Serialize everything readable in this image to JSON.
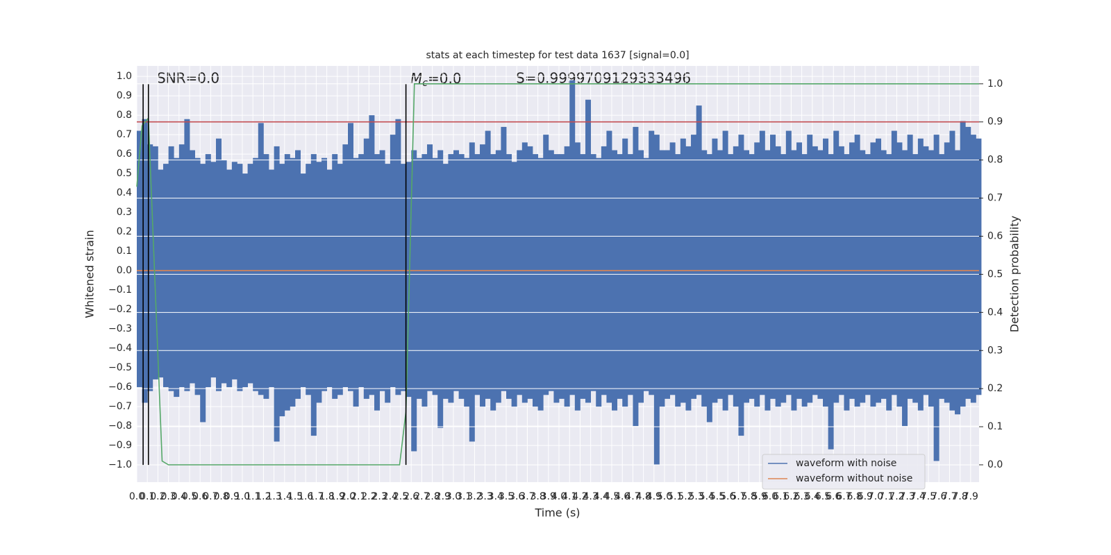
{
  "chart_data": {
    "type": "timeseries",
    "title": "stats at each timestep for test data 1637 [signal=0.0]",
    "xlabel": "Time (s)",
    "ylabel": "Whitened strain",
    "y2label": "Detection probability",
    "annotations": [
      "SNR=0.0",
      {
        "main": "M",
        "sub": "c",
        "rest": "=0.0"
      },
      "S=0.9999709129333496"
    ],
    "xlim": [
      0,
      7.98
    ],
    "ylim": [
      -1.089,
      1.054
    ],
    "y2lim": [
      -0.0455,
      1.047
    ],
    "grid": true,
    "legend": "lower right",
    "xticks": [
      {
        "value": 0,
        "label": "0.0"
      },
      0.1,
      0.2,
      0.3,
      0.4,
      0.5,
      0.6,
      0.7,
      0.8,
      0.9,
      {
        "value": 1,
        "label": "1.0"
      },
      1.1,
      1.2,
      1.3,
      1.4,
      1.5,
      1.6,
      1.7,
      1.8,
      1.9,
      {
        "value": 2,
        "label": "2.0"
      },
      2.1,
      2.2,
      2.3,
      2.4,
      2.5,
      2.6,
      2.7,
      2.8,
      2.9,
      {
        "value": 3,
        "label": "3.0"
      },
      3.1,
      3.2,
      3.3,
      3.4,
      3.5,
      3.6,
      3.7,
      3.8,
      3.9,
      {
        "value": 4,
        "label": "4.0"
      },
      4.1,
      4.2,
      4.3,
      4.4,
      4.5,
      4.6,
      4.7,
      4.8,
      4.9,
      {
        "value": 5,
        "label": "5.0"
      },
      5.1,
      5.2,
      5.3,
      5.4,
      5.5,
      5.6,
      5.7,
      5.8,
      5.9,
      {
        "value": 6,
        "label": "6.0"
      },
      6.1,
      6.2,
      6.3,
      6.4,
      6.5,
      6.6,
      6.7,
      6.8,
      6.9,
      {
        "value": 7,
        "label": "7.0"
      },
      7.1,
      7.2,
      7.3,
      7.4,
      7.5,
      7.6,
      7.7,
      7.8,
      7.9
    ],
    "yticks": [
      {
        "value": 1,
        "label": "1.0"
      },
      0.9,
      0.8,
      0.7,
      0.6,
      0.5,
      0.4,
      0.3,
      0.2,
      0.1,
      {
        "value": 0,
        "label": "0.0"
      },
      {
        "value": -0.1,
        "label": "−0.1"
      },
      {
        "value": -0.2,
        "label": "−0.2"
      },
      {
        "value": -0.3,
        "label": "−0.3"
      },
      {
        "value": -0.4,
        "label": "−0.4"
      },
      {
        "value": -0.5,
        "label": "−0.5"
      },
      {
        "value": -0.6,
        "label": "−0.6"
      },
      {
        "value": -0.7,
        "label": "−0.7"
      },
      {
        "value": -0.8,
        "label": "−0.8"
      },
      {
        "value": -0.9,
        "label": "−0.9"
      },
      {
        "value": -1,
        "label": "−1.0"
      }
    ],
    "y2ticks": [
      {
        "value": 1,
        "label": "1.0"
      },
      0.9,
      0.8,
      0.7,
      0.6,
      0.5,
      0.4,
      0.3,
      0.2,
      0.1,
      {
        "value": 0,
        "label": "0.0"
      }
    ],
    "waveform": {
      "name": "waveform with noise",
      "color": "#4c72b0",
      "x": [
        0,
        0.05,
        0.1,
        0.15,
        0.2,
        0.25,
        0.3,
        0.35,
        0.4,
        0.45,
        0.5,
        0.55,
        0.6,
        0.65,
        0.7,
        0.75,
        0.8,
        0.85,
        0.9,
        0.95,
        1,
        1.05,
        1.1,
        1.15,
        1.2,
        1.25,
        1.3,
        1.35,
        1.4,
        1.45,
        1.5,
        1.55,
        1.6,
        1.65,
        1.7,
        1.75,
        1.8,
        1.85,
        1.9,
        1.95,
        2,
        2.05,
        2.1,
        2.15,
        2.2,
        2.25,
        2.3,
        2.35,
        2.4,
        2.45,
        2.5,
        2.55,
        2.6,
        2.65,
        2.7,
        2.75,
        2.8,
        2.85,
        2.9,
        2.95,
        3,
        3.05,
        3.1,
        3.15,
        3.2,
        3.25,
        3.3,
        3.35,
        3.4,
        3.45,
        3.5,
        3.55,
        3.6,
        3.65,
        3.7,
        3.75,
        3.8,
        3.85,
        3.9,
        3.95,
        4,
        4.05,
        4.1,
        4.15,
        4.2,
        4.25,
        4.3,
        4.35,
        4.4,
        4.45,
        4.5,
        4.55,
        4.6,
        4.65,
        4.7,
        4.75,
        4.8,
        4.85,
        4.9,
        4.95,
        5,
        5.05,
        5.1,
        5.15,
        5.2,
        5.25,
        5.3,
        5.35,
        5.4,
        5.45,
        5.5,
        5.55,
        5.6,
        5.65,
        5.7,
        5.75,
        5.8,
        5.85,
        5.9,
        5.95,
        6,
        6.05,
        6.1,
        6.15,
        6.2,
        6.25,
        6.3,
        6.35,
        6.4,
        6.45,
        6.5,
        6.55,
        6.6,
        6.65,
        6.7,
        6.75,
        6.8,
        6.85,
        6.9,
        6.95,
        7,
        7.05,
        7.1,
        7.15,
        7.2,
        7.25,
        7.3,
        7.35,
        7.4,
        7.45,
        7.5,
        7.55,
        7.6,
        7.65,
        7.7,
        7.75,
        7.8,
        7.85,
        7.9,
        7.95
      ],
      "upper": [
        0.72,
        0.78,
        0.65,
        0.64,
        0.52,
        0.55,
        0.64,
        0.58,
        0.65,
        0.78,
        0.62,
        0.58,
        0.55,
        0.6,
        0.56,
        0.68,
        0.57,
        0.52,
        0.56,
        0.55,
        0.5,
        0.55,
        0.58,
        0.76,
        0.6,
        0.52,
        0.64,
        0.55,
        0.6,
        0.58,
        0.62,
        0.5,
        0.55,
        0.6,
        0.56,
        0.58,
        0.52,
        0.6,
        0.55,
        0.65,
        0.76,
        0.58,
        0.6,
        0.68,
        0.8,
        0.6,
        0.62,
        0.55,
        0.7,
        0.78,
        0.55,
        0.56,
        0.62,
        0.58,
        0.6,
        0.65,
        0.58,
        0.62,
        0.55,
        0.6,
        0.62,
        0.6,
        0.58,
        0.66,
        0.6,
        0.65,
        0.72,
        0.6,
        0.62,
        0.74,
        0.6,
        0.56,
        0.62,
        0.66,
        0.64,
        0.6,
        0.58,
        0.7,
        0.62,
        0.6,
        0.6,
        0.64,
        0.98,
        0.66,
        0.6,
        0.88,
        0.6,
        0.58,
        0.64,
        0.72,
        0.62,
        0.6,
        0.68,
        0.6,
        0.74,
        0.62,
        0.58,
        0.72,
        0.7,
        0.62,
        0.62,
        0.66,
        0.6,
        0.68,
        0.64,
        0.7,
        0.85,
        0.62,
        0.6,
        0.68,
        0.62,
        0.72,
        0.6,
        0.64,
        0.7,
        0.62,
        0.6,
        0.66,
        0.72,
        0.62,
        0.7,
        0.64,
        0.6,
        0.72,
        0.62,
        0.66,
        0.6,
        0.7,
        0.64,
        0.62,
        0.68,
        0.6,
        0.72,
        0.64,
        0.6,
        0.66,
        0.7,
        0.62,
        0.6,
        0.66,
        0.68,
        0.62,
        0.6,
        0.72,
        0.66,
        0.62,
        0.7,
        0.6,
        0.68,
        0.64,
        0.62,
        0.7,
        0.6,
        0.66,
        0.72,
        0.62,
        0.77,
        0.74,
        0.7,
        0.68
      ],
      "lower": [
        -0.6,
        -0.68,
        -0.62,
        -0.56,
        -0.55,
        -0.6,
        -0.62,
        -0.65,
        -0.6,
        -0.62,
        -0.58,
        -0.64,
        -0.78,
        -0.6,
        -0.55,
        -0.62,
        -0.58,
        -0.6,
        -0.56,
        -0.62,
        -0.6,
        -0.58,
        -0.62,
        -0.64,
        -0.66,
        -0.6,
        -0.88,
        -0.75,
        -0.72,
        -0.7,
        -0.66,
        -0.6,
        -0.64,
        -0.85,
        -0.68,
        -0.62,
        -0.6,
        -0.66,
        -0.64,
        -0.6,
        -0.62,
        -0.7,
        -0.6,
        -0.66,
        -0.64,
        -0.72,
        -0.62,
        -0.68,
        -0.6,
        -0.64,
        -0.62,
        -0.65,
        -0.93,
        -0.66,
        -0.7,
        -0.62,
        -0.64,
        -0.81,
        -0.66,
        -0.68,
        -0.62,
        -0.66,
        -0.7,
        -0.88,
        -0.64,
        -0.7,
        -0.66,
        -0.72,
        -0.68,
        -0.62,
        -0.66,
        -0.7,
        -0.64,
        -0.68,
        -0.66,
        -0.7,
        -0.72,
        -0.64,
        -0.62,
        -0.68,
        -0.66,
        -0.7,
        -0.64,
        -0.72,
        -0.66,
        -0.68,
        -0.62,
        -0.7,
        -0.64,
        -0.68,
        -0.72,
        -0.66,
        -0.7,
        -0.64,
        -0.8,
        -0.68,
        -0.62,
        -0.64,
        -1.0,
        -0.7,
        -0.66,
        -0.64,
        -0.7,
        -0.68,
        -0.72,
        -0.66,
        -0.64,
        -0.7,
        -0.78,
        -0.68,
        -0.66,
        -0.72,
        -0.64,
        -0.7,
        -0.85,
        -0.68,
        -0.66,
        -0.7,
        -0.64,
        -0.72,
        -0.66,
        -0.7,
        -0.68,
        -0.64,
        -0.72,
        -0.66,
        -0.7,
        -0.68,
        -0.64,
        -0.66,
        -0.7,
        -0.92,
        -0.68,
        -0.64,
        -0.72,
        -0.66,
        -0.7,
        -0.68,
        -0.64,
        -0.7,
        -0.68,
        -0.66,
        -0.72,
        -0.64,
        -0.7,
        -0.8,
        -0.66,
        -0.68,
        -0.72,
        -0.64,
        -0.7,
        -0.98,
        -0.66,
        -0.68,
        -0.72,
        -0.74,
        -0.7,
        -0.66,
        -0.68,
        -0.64
      ]
    },
    "series": [
      {
        "name": "waveform without noise",
        "color": "#dd8452",
        "x": [
          0,
          7.98
        ],
        "values": [
          0,
          0
        ]
      },
      {
        "color": "#c44e52",
        "axis": "y2",
        "x": [
          0,
          7.98
        ],
        "values": [
          0.9,
          0.9
        ]
      },
      {
        "color": "#55a868",
        "axis": "y2",
        "x": [
          0,
          0.05,
          0.11,
          0.24,
          0.3,
          2.49,
          2.55,
          2.63,
          7.98
        ],
        "values": [
          0.73,
          0.89,
          0.91,
          0.01,
          0,
          0,
          0.14,
          1,
          1
        ]
      }
    ],
    "vlines": {
      "color": "#000000",
      "x": [
        0.06,
        0.11,
        2.55
      ],
      "ymin": -1.0,
      "ymax": 0.96
    }
  }
}
